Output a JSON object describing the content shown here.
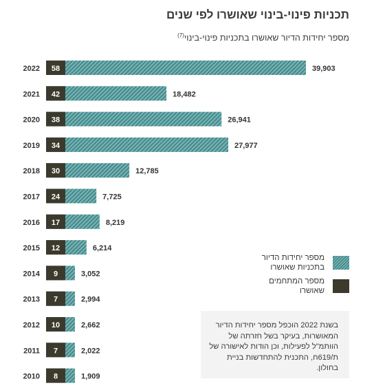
{
  "title": "תכניות פינוי-בינוי שאושרו לפי שנים",
  "subtitle": "מספר יחידות הדיור שאושרו בתכניות פינוי-בינוי",
  "subtitle_note_mark": "(7)",
  "legend": {
    "units_label": "מספר יחידות הדיור בתכניות שאושרו",
    "plans_label": "מספר המתחמים שאושרו"
  },
  "note": "בשנת 2022 הוכפל מספר יחידות הדיור המאושרות, בעיקר בשל חזרתה של הוותמ\"ל לפעילות, וכן הודות לאישורה של ת/619ח, התכנית להתחדשות בניית בחולון.",
  "colors": {
    "bar_light": "#7fb3b4",
    "bar_dark": "#3f8a8c",
    "count_box": "#3b3a2d",
    "text": "#333333"
  },
  "chart_data": {
    "type": "bar",
    "orientation": "horizontal",
    "categories": [
      "2022",
      "2021",
      "2020",
      "2019",
      "2018",
      "2017",
      "2016",
      "2015",
      "2014",
      "2013",
      "2012",
      "2011",
      "2010"
    ],
    "series": [
      {
        "name": "מספר יחידות הדיור בתכניות שאושרו",
        "values": [
          39903,
          18482,
          26941,
          27977,
          12785,
          7725,
          8219,
          6214,
          3052,
          2994,
          2662,
          2022,
          1909
        ],
        "labels": [
          "39,903",
          "18,482",
          "26,941",
          "27,977",
          "12,785",
          "7,725",
          "8,219",
          "6,214",
          "3,052",
          "2,994",
          "2,662",
          "2,022",
          "1,909"
        ]
      },
      {
        "name": "מספר המתחמים שאושרו",
        "values": [
          58,
          42,
          38,
          34,
          30,
          24,
          17,
          12,
          9,
          7,
          10,
          7,
          8
        ]
      }
    ],
    "xlim": [
      0,
      39903
    ],
    "grid": false
  }
}
